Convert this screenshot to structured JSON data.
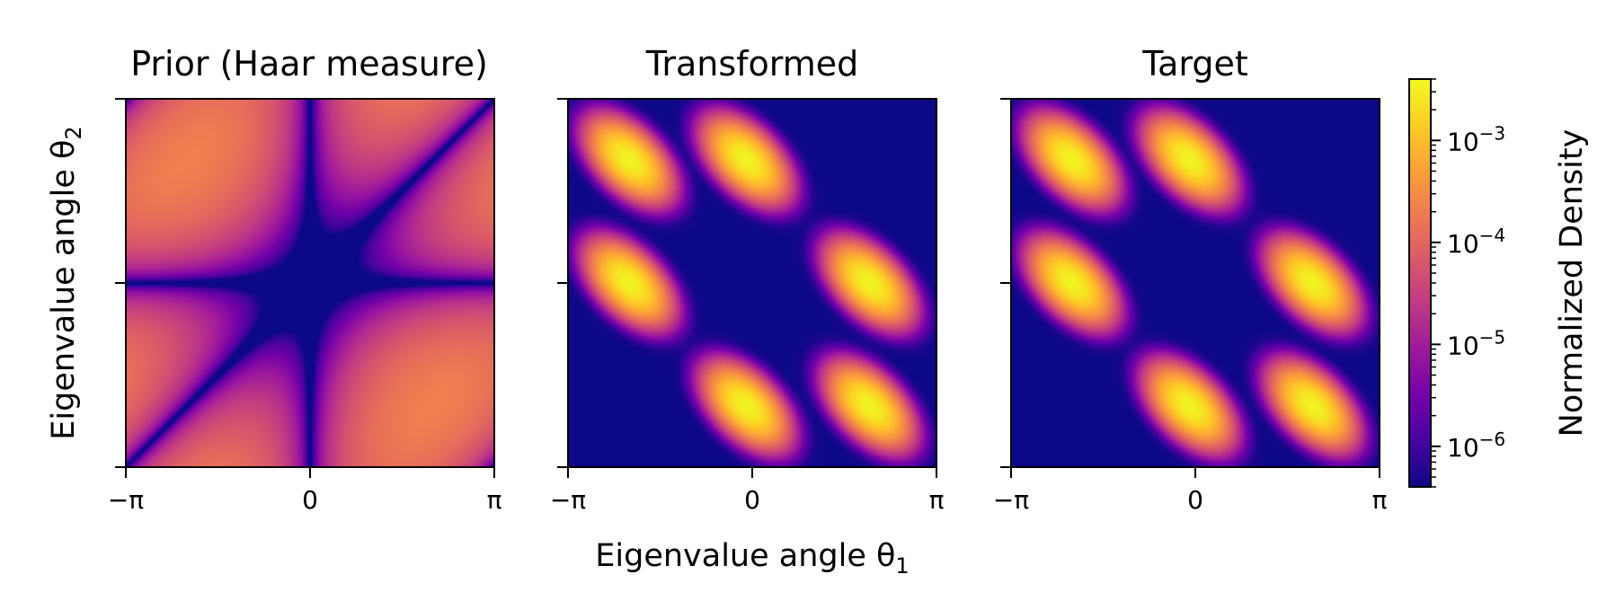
{
  "chart_data": [
    {
      "type": "heatmap",
      "title": "Prior (Haar measure)",
      "x_ticks": [
        "−π",
        "0",
        "π"
      ],
      "y_ticks": [
        "",
        "",
        ""
      ],
      "xlim": [
        -3.14159,
        3.14159
      ],
      "ylim": [
        -3.14159,
        3.14159
      ],
      "colormap": "plasma",
      "density_model": "haar",
      "modes": []
    },
    {
      "type": "heatmap",
      "title": "Transformed",
      "x_ticks": [
        "−π",
        "0",
        "π"
      ],
      "y_ticks": [
        "",
        "",
        ""
      ],
      "xlim": [
        -3.14159,
        3.14159
      ],
      "ylim": [
        -3.14159,
        3.14159
      ],
      "colormap": "plasma",
      "density_model": "gaussian_mixture",
      "modes": [
        [
          -2.1,
          2.1
        ],
        [
          -0.1,
          2.1
        ],
        [
          -2.1,
          0.0
        ],
        [
          2.0,
          0.0
        ],
        [
          -0.1,
          -2.1
        ],
        [
          2.0,
          -2.1
        ]
      ]
    },
    {
      "type": "heatmap",
      "title": "Target",
      "x_ticks": [
        "−π",
        "0",
        "π"
      ],
      "y_ticks": [
        "",
        "",
        ""
      ],
      "xlim": [
        -3.14159,
        3.14159
      ],
      "ylim": [
        -3.14159,
        3.14159
      ],
      "colormap": "plasma",
      "density_model": "gaussian_mixture",
      "modes": [
        [
          -2.1,
          2.1
        ],
        [
          -0.1,
          2.1
        ],
        [
          -2.1,
          0.0
        ],
        [
          2.0,
          0.0
        ],
        [
          -0.1,
          -2.1
        ],
        [
          2.0,
          -2.1
        ]
      ]
    }
  ],
  "shared": {
    "xlabel_prefix": "Eigenvalue angle θ",
    "xlabel_sub": "1",
    "ylabel_prefix": "Eigenvalue angle θ",
    "ylabel_sub": "2"
  },
  "colorbar": {
    "label": "Normalized Density",
    "scale": "log",
    "range": [
      4e-07,
      0.004
    ],
    "ticks": [
      {
        "value": 0.001,
        "base": "10",
        "exp": "−3"
      },
      {
        "value": 0.0001,
        "base": "10",
        "exp": "−4"
      },
      {
        "value": 1e-05,
        "base": "10",
        "exp": "−5"
      },
      {
        "value": 1e-06,
        "base": "10",
        "exp": "−6"
      }
    ],
    "colors": [
      "#0d0887",
      "#46039f",
      "#7201a8",
      "#9c179e",
      "#bd3786",
      "#d8576b",
      "#ed7953",
      "#fb9f3a",
      "#fdca26",
      "#f0f921"
    ]
  }
}
